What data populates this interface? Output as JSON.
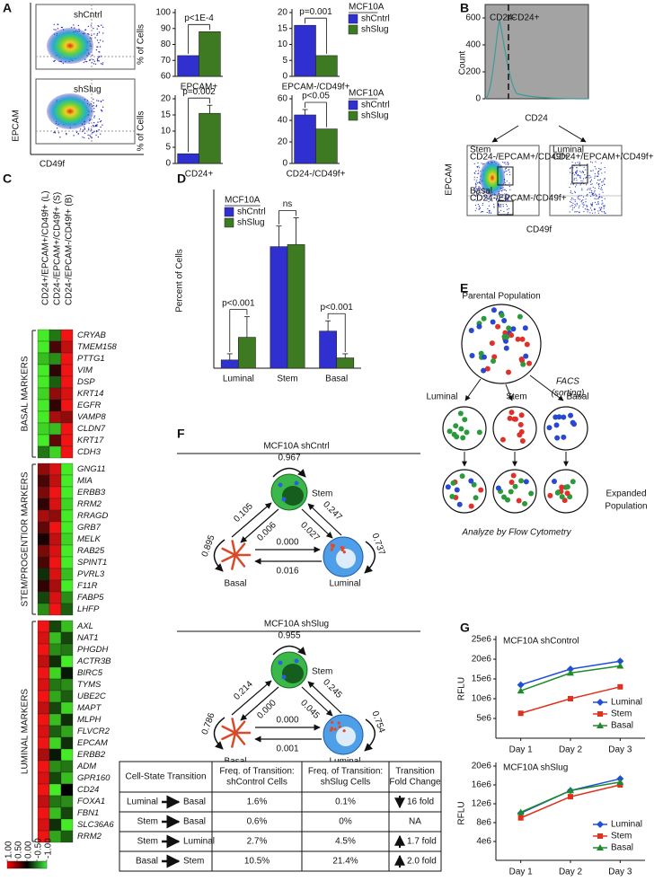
{
  "panel_labels": [
    "A",
    "B",
    "C",
    "D",
    "E",
    "F",
    "G"
  ],
  "panel_a": {
    "y_label": "EPCAM",
    "x_label": "CD49f",
    "plots": [
      "shCntrl",
      "shSlug"
    ]
  },
  "panel_b": {
    "histogram": {
      "y_label": "Count",
      "x_label": "CD24",
      "ylim": [
        0,
        700
      ],
      "yticks": [
        0,
        200,
        400,
        600
      ],
      "gates": [
        "CD24-",
        "CD24+"
      ]
    },
    "scatter": {
      "y_label": "EPCAM",
      "x_label": "CD49f",
      "gates": [
        [
          "Stem",
          "CD24-/EPCAM+/CD49f+"
        ],
        [
          "Basal",
          "CD24-/EPCAM-/CD49f+"
        ],
        [
          "Luminal",
          "CD24+/EPCAM+/CD49f+"
        ]
      ]
    }
  },
  "panel_c": {
    "columns": [
      "CD24+/EPCAM+/CD49f+ (L)",
      "CD24-/EPCAM+/CD49f+ (S)",
      "CD24-/EPCAM-/CD49f+ (B)"
    ],
    "groups": [
      {
        "name": "BASAL MARKERS",
        "genes": [
          "CRYAB",
          "TMEM158",
          "PTTG1",
          "VIM",
          "DSP",
          "KRT14",
          "EGFR",
          "VAMP8",
          "CLDN7",
          "KRT17",
          "CDH3"
        ],
        "values": [
          [
            -1,
            -0.5,
            1
          ],
          [
            -1,
            0.3,
            0.8
          ],
          [
            -0.8,
            -0.6,
            1
          ],
          [
            -1,
            0.2,
            1
          ],
          [
            -1,
            -0.4,
            1
          ],
          [
            -0.9,
            0.6,
            0.9
          ],
          [
            -1,
            0.2,
            1
          ],
          [
            -1,
            0.7,
            0.6
          ],
          [
            -0.9,
            -0.8,
            1
          ],
          [
            -1,
            0.4,
            1
          ],
          [
            -0.5,
            -0.9,
            1
          ]
        ]
      },
      {
        "name": "STEM/PROGENTIOR MARKERS",
        "genes": [
          "GNG11",
          "MIA",
          "ERBB3",
          "RRM2",
          "RRAGD",
          "GRB7",
          "MELK",
          "RAB25",
          "SPINT1",
          "PVRL3",
          "F11R",
          "FABP5",
          "LHFP"
        ],
        "values": [
          [
            0.6,
            0.9,
            -1
          ],
          [
            0.3,
            0.8,
            -1
          ],
          [
            0.5,
            1,
            -1
          ],
          [
            0.2,
            0.9,
            -0.9
          ],
          [
            0.7,
            0.6,
            -1
          ],
          [
            0.4,
            1,
            -1
          ],
          [
            0.1,
            0.8,
            -0.9
          ],
          [
            0.5,
            0.9,
            -1
          ],
          [
            0.3,
            1,
            -1
          ],
          [
            -0.2,
            0.9,
            -0.8
          ],
          [
            0.2,
            0.7,
            -1
          ],
          [
            -0.3,
            0.9,
            -0.6
          ],
          [
            -0.6,
            1,
            -0.4
          ]
        ]
      },
      {
        "name": "LUMINAL MARKERS",
        "genes": [
          "AXL",
          "NAT1",
          "PHGDH",
          "ACTR3B",
          "BIRC5",
          "TYMS",
          "UBE2C",
          "MAPT",
          "MLPH",
          "FLVCR2",
          "EPCAM",
          "ERBB2",
          "ADM",
          "GPR160",
          "CD24",
          "FOXA1",
          "FBN1",
          "SLC36A6",
          "RRM2"
        ],
        "values": [
          [
            1,
            -0.3,
            -0.8
          ],
          [
            0.9,
            -0.8,
            -0.3
          ],
          [
            1,
            -0.6,
            -0.5
          ],
          [
            0.8,
            -0.2,
            -1
          ],
          [
            1,
            -0.9,
            -0.1
          ],
          [
            0.9,
            -0.5,
            -0.6
          ],
          [
            1,
            -0.7,
            -0.4
          ],
          [
            0.8,
            -0.3,
            -0.9
          ],
          [
            1,
            -0.8,
            -0.2
          ],
          [
            0.9,
            -0.4,
            -0.7
          ],
          [
            1,
            -0.9,
            -0.2
          ],
          [
            0.7,
            -0.1,
            -1
          ],
          [
            1,
            -0.6,
            -0.5
          ],
          [
            0.9,
            -0.3,
            -0.8
          ],
          [
            1,
            -1,
            0
          ],
          [
            0.8,
            -0.5,
            -0.6
          ],
          [
            1,
            -0.8,
            -0.3
          ],
          [
            0.9,
            -0.2,
            -1
          ],
          [
            1,
            -0.7,
            -0.4
          ]
        ]
      }
    ],
    "scale": [
      {
        "value": 1,
        "label": "1.00"
      },
      {
        "value": 0.5,
        "label": "0.50"
      },
      {
        "value": 0,
        "label": "0.00"
      },
      {
        "value": -0.5,
        "label": "-0.50"
      },
      {
        "value": -1,
        "label": "-1.00"
      }
    ]
  },
  "panel_e": {
    "parental": "Parental Population",
    "facs": [
      "FACS",
      "(sorting)"
    ],
    "subpopulations": [
      "Luminal",
      "Stem",
      "Basal"
    ],
    "expanded": [
      "Expanded",
      "Population"
    ],
    "analysis": "Analyze by Flow Cytometry"
  },
  "panel_f": {
    "diagrams": [
      {
        "title": "MCF10A shCntrl",
        "nodes": [
          "Stem",
          "Basal",
          "Luminal"
        ],
        "stem_self": "0.967",
        "basal_self": "0.895",
        "luminal_self": "0.737",
        "basal_to_stem": "0.105",
        "stem_to_basal": "0.006",
        "stem_to_luminal": "0.027",
        "luminal_to_stem": "0.247",
        "basal_to_luminal": "0.000",
        "luminal_to_basal": "0.016"
      },
      {
        "title": "MCF10A shSlug",
        "nodes": [
          "Stem",
          "Basal",
          "Luminal"
        ],
        "stem_self": "0.955",
        "basal_self": "0.786",
        "luminal_self": "0.754",
        "basal_to_stem": "0.214",
        "stem_to_basal": "0.000",
        "stem_to_luminal": "0.045",
        "luminal_to_stem": "0.245",
        "basal_to_luminal": "0.000",
        "luminal_to_basal": "0.001"
      }
    ],
    "table": {
      "header": [
        [
          "Cell-State Transition"
        ],
        [
          "Freq. of Transition:",
          "shControl Cells"
        ],
        [
          "Freq. of Transition:",
          "shSlug Cells"
        ],
        [
          "Transition",
          "Fold Change"
        ]
      ],
      "rows": [
        {
          "from": "Luminal",
          "to": "Basal",
          "cells": [
            "1.6%",
            "0.1%",
            "16 fold"
          ]
        },
        {
          "from": "Stem",
          "to": "Basal",
          "cells": [
            "0.6%",
            "0%",
            "NA"
          ]
        },
        {
          "from": "Stem",
          "to": "Luminal",
          "cells": [
            "2.7%",
            "4.5%",
            "1.7 fold"
          ]
        },
        {
          "from": "Basal",
          "to": "Stem",
          "cells": [
            "10.5%",
            "21.4%",
            "2.0 fold"
          ]
        }
      ]
    }
  },
  "chart_data": [
    {
      "type": "bar",
      "categories": [
        "EPCAM+"
      ],
      "y_label": "% of Cells",
      "series": [
        {
          "color": "#3030d0",
          "values": [
            73
          ]
        },
        {
          "color": "#3e7a22",
          "values": [
            88
          ]
        }
      ],
      "ylim": [
        60,
        100
      ],
      "yticks": [
        60,
        70,
        80,
        90,
        100
      ],
      "annotations": [
        "p<1E-4"
      ]
    },
    {
      "type": "bar",
      "categories": [
        "EPCAM-/CD49f+"
      ],
      "legend_title": "MCF10A",
      "legend": "right",
      "series": [
        {
          "name": "shCntrl",
          "color": "#3030d0",
          "values": [
            16
          ]
        },
        {
          "name": "shSlug",
          "color": "#3e7a22",
          "values": [
            6.5
          ]
        }
      ],
      "ylim": [
        0,
        20
      ],
      "yticks": [
        0,
        5,
        10,
        15,
        20
      ],
      "annotations": [
        "p=0.001"
      ]
    },
    {
      "type": "bar",
      "categories": [
        "CD24+"
      ],
      "y_label": "% of Cells",
      "series": [
        {
          "color": "#3030d0",
          "values": [
            3
          ]
        },
        {
          "color": "#3e7a22",
          "values": [
            15.5
          ],
          "errors": [
            2.5
          ]
        }
      ],
      "ylim": [
        0,
        20
      ],
      "yticks": [
        0,
        5,
        10,
        15,
        20
      ],
      "annotations": [
        "p=0.002"
      ]
    },
    {
      "type": "bar",
      "categories": [
        "CD24-/CD49f+"
      ],
      "legend_title": "MCF10A",
      "legend": "right",
      "series": [
        {
          "name": "shCntrl",
          "color": "#3030d0",
          "values": [
            45
          ],
          "errors": [
            5
          ]
        },
        {
          "name": "shSlug",
          "color": "#3e7a22",
          "values": [
            32
          ]
        }
      ],
      "ylim": [
        0,
        60
      ],
      "yticks": [
        0,
        20,
        40,
        60
      ],
      "annotations": [
        "p<0.05"
      ]
    },
    {
      "type": "bar",
      "categories": [
        "Luminal",
        "Stem",
        "Basal"
      ],
      "y_label": "Percent of Cells",
      "legend_title": "MCF10A",
      "legend": "upper left",
      "series": [
        {
          "name": "shCntrl",
          "color": "#3030d0",
          "values": [
            4,
            59,
            18
          ],
          "errors": [
            3,
            10,
            5
          ]
        },
        {
          "name": "shSlug",
          "color": "#3e7a22",
          "values": [
            15,
            60,
            5
          ],
          "errors": [
            10,
            13,
            2
          ]
        }
      ],
      "ylim": [
        0,
        85
      ],
      "annotations": [
        "p<0.001",
        "ns",
        "p<0.001"
      ]
    },
    {
      "type": "line",
      "title": "MCF10A shControl",
      "y_label": "RFLU",
      "categories": [
        "Day 1",
        "Day 2",
        "Day 3"
      ],
      "legend": "lower right",
      "series": [
        {
          "name": "Luminal",
          "color": "#1f4fd6",
          "marker": "diamond",
          "values": [
            13500000,
            17500000,
            19500000
          ]
        },
        {
          "name": "Stem",
          "color": "#e0301e",
          "marker": "square",
          "values": [
            6300000,
            10000000,
            13000000
          ]
        },
        {
          "name": "Basal",
          "color": "#1f8a2a",
          "marker": "triangle",
          "values": [
            12000000,
            16500000,
            18300000
          ]
        }
      ],
      "ylim": [
        0,
        25000000
      ],
      "yticks": [
        {
          "value": 5000000,
          "label": "5e6"
        },
        {
          "value": 10000000,
          "label": "10e6"
        },
        {
          "value": 15000000,
          "label": "15e6"
        },
        {
          "value": 20000000,
          "label": "20e6"
        },
        {
          "value": 25000000,
          "label": "25e6"
        }
      ]
    },
    {
      "type": "line",
      "title": "MCF10A shSlug",
      "y_label": "RFLU",
      "categories": [
        "Day 1",
        "Day 2",
        "Day 3"
      ],
      "legend": "lower right",
      "series": [
        {
          "name": "Luminal",
          "color": "#1f4fd6",
          "marker": "diamond",
          "values": [
            10000000,
            14800000,
            17300000
          ]
        },
        {
          "name": "Stem",
          "color": "#e0301e",
          "marker": "square",
          "values": [
            9000000,
            13500000,
            16000000
          ]
        },
        {
          "name": "Basal",
          "color": "#1f8a2a",
          "marker": "triangle",
          "values": [
            10200000,
            14800000,
            16600000
          ]
        }
      ],
      "ylim": [
        0,
        20000000
      ],
      "yticks": [
        {
          "value": 4000000,
          "label": "4e6"
        },
        {
          "value": 8000000,
          "label": "8e6"
        },
        {
          "value": 12000000,
          "label": "12e6"
        },
        {
          "value": 16000000,
          "label": "16e6"
        },
        {
          "value": 20000000,
          "label": "20e6"
        }
      ]
    }
  ]
}
